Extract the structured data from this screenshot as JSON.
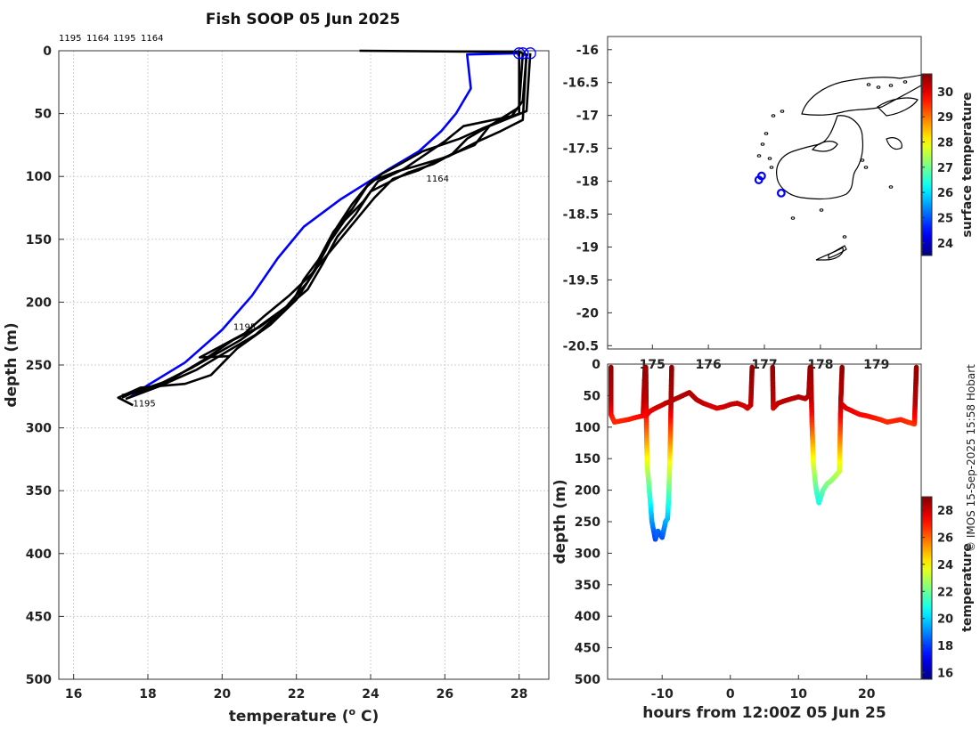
{
  "title": "Fish SOOP 05 Jun 2025",
  "credit": "© IMOS 15-Sep-2025 15:58 Hobart",
  "chart_data": [
    {
      "id": "profiles",
      "type": "line",
      "xlabel": "temperature (",
      "xlabel_sup": "o",
      "xlabel_end": " C)",
      "ylabel": "depth (m)",
      "xlim": [
        15.6,
        28.8
      ],
      "ylim": [
        0,
        500
      ],
      "y_reversed": true,
      "xticks": [
        16,
        18,
        20,
        22,
        24,
        26,
        28
      ],
      "yticks": [
        0,
        50,
        100,
        150,
        200,
        250,
        300,
        350,
        400,
        450,
        500
      ],
      "grid": true,
      "top_labels": [
        "1195",
        "1164",
        "1195",
        "1164"
      ],
      "annotations": [
        {
          "text": "1195",
          "x": 20.3,
          "y": 222
        },
        {
          "text": "1164",
          "x": 25.5,
          "y": 104
        },
        {
          "text": "1195",
          "x": 17.6,
          "y": 283
        }
      ],
      "series": [
        {
          "name": "climatology",
          "color": "#0000ff",
          "points": [
            [
              28.0,
              2
            ],
            [
              26.6,
              3
            ],
            [
              26.7,
              30
            ],
            [
              26.3,
              50
            ],
            [
              25.9,
              64
            ],
            [
              25.3,
              80
            ],
            [
              24.5,
              94
            ],
            [
              23.2,
              118
            ],
            [
              22.2,
              140
            ],
            [
              21.5,
              165
            ],
            [
              20.8,
              195
            ],
            [
              20.0,
              222
            ],
            [
              19.0,
              248
            ],
            [
              18.0,
              266
            ],
            [
              17.5,
              276
            ]
          ]
        },
        {
          "name": "profile-1",
          "color": "#000000",
          "points": [
            [
              23.7,
              0
            ],
            [
              28.0,
              1
            ],
            [
              28.2,
              3
            ],
            [
              28.1,
              40
            ],
            [
              27.8,
              52
            ],
            [
              26.5,
              60
            ],
            [
              26.0,
              72
            ],
            [
              25.5,
              82
            ],
            [
              24.9,
              94
            ],
            [
              24.2,
              104
            ],
            [
              23.8,
              120
            ],
            [
              23.3,
              135
            ],
            [
              22.9,
              152
            ],
            [
              22.5,
              175
            ],
            [
              22.0,
              198
            ],
            [
              21.3,
              218
            ],
            [
              20.4,
              237
            ],
            [
              19.7,
              258
            ],
            [
              19.0,
              265
            ],
            [
              17.8,
              268
            ],
            [
              17.2,
              276
            ],
            [
              17.6,
              282
            ]
          ]
        },
        {
          "name": "profile-2",
          "color": "#000000",
          "points": [
            [
              28.1,
              2
            ],
            [
              28.0,
              45
            ],
            [
              27.3,
              58
            ],
            [
              26.6,
              70
            ],
            [
              26.2,
              82
            ],
            [
              25.7,
              90
            ],
            [
              25.0,
              97
            ],
            [
              24.0,
              112
            ],
            [
              23.6,
              130
            ],
            [
              23.1,
              148
            ],
            [
              22.7,
              170
            ],
            [
              22.3,
              190
            ],
            [
              21.7,
              205
            ],
            [
              21.0,
              220
            ],
            [
              20.3,
              230
            ],
            [
              19.5,
              246
            ],
            [
              18.6,
              262
            ],
            [
              17.6,
              272
            ],
            [
              17.3,
              276
            ]
          ]
        },
        {
          "name": "profile-3",
          "color": "#000000",
          "points": [
            [
              28.3,
              2
            ],
            [
              28.2,
              48
            ],
            [
              27.2,
              60
            ],
            [
              26.8,
              75
            ],
            [
              25.9,
              86
            ],
            [
              25.3,
              95
            ],
            [
              24.6,
              102
            ],
            [
              24.1,
              117
            ],
            [
              23.4,
              142
            ],
            [
              22.9,
              160
            ],
            [
              22.4,
              178
            ],
            [
              21.8,
              195
            ],
            [
              21.1,
              212
            ],
            [
              20.6,
              225
            ],
            [
              19.4,
              244
            ],
            [
              20.2,
              243
            ]
          ]
        },
        {
          "name": "profile-4",
          "color": "#000000",
          "points": [
            [
              28.0,
              2
            ],
            [
              28.0,
              50
            ],
            [
              27.0,
              62
            ],
            [
              26.4,
              70
            ],
            [
              25.4,
              80
            ],
            [
              24.8,
              90
            ],
            [
              24.3,
              98
            ],
            [
              23.9,
              108
            ],
            [
              23.5,
              126
            ],
            [
              23.0,
              144
            ],
            [
              22.6,
              166
            ],
            [
              22.2,
              182
            ],
            [
              21.9,
              200
            ],
            [
              21.2,
              215
            ],
            [
              20.5,
              230
            ],
            [
              19.2,
              252
            ],
            [
              18.0,
              270
            ],
            [
              17.3,
              274
            ]
          ]
        },
        {
          "name": "profile-5",
          "color": "#000000",
          "points": [
            [
              28.2,
              3
            ],
            [
              28.1,
              55
            ],
            [
              27.5,
              64
            ],
            [
              26.9,
              72
            ],
            [
              26.1,
              84
            ],
            [
              25.2,
              92
            ],
            [
              24.7,
              96
            ],
            [
              24.0,
              104
            ],
            [
              23.5,
              122
            ],
            [
              23.1,
              140
            ],
            [
              22.8,
              158
            ],
            [
              22.3,
              184
            ],
            [
              21.6,
              208
            ],
            [
              20.9,
              226
            ],
            [
              20.2,
              238
            ],
            [
              19.3,
              254
            ],
            [
              18.3,
              267
            ],
            [
              17.4,
              277
            ]
          ]
        }
      ],
      "markers": [
        [
          28.0,
          2
        ],
        [
          28.1,
          2
        ],
        [
          28.3,
          2
        ]
      ]
    },
    {
      "id": "map",
      "type": "scatter",
      "xticks": [
        175,
        176,
        177,
        178,
        179
      ],
      "yticks": [
        -16,
        -16.5,
        -17,
        -17.5,
        -18,
        -18.5,
        -19,
        -19.5,
        -20,
        -20.5
      ],
      "xlim": [
        174.2,
        179.8
      ],
      "ylim": [
        -20.55,
        -15.8
      ],
      "positions": [
        [
          176.9,
          -17.98
        ],
        [
          176.95,
          -17.92
        ],
        [
          177.3,
          -18.18
        ]
      ],
      "colorbar": {
        "label": "surface temperature",
        "min": 23.5,
        "max": 30.7,
        "ticks": [
          24,
          25,
          26,
          27,
          28,
          29,
          30
        ]
      }
    },
    {
      "id": "transect",
      "type": "scatter",
      "xlabel": "hours from 12:00Z 05 Jun 25",
      "ylabel": "depth (m)",
      "xlim": [
        -18,
        28
      ],
      "ylim": [
        0,
        500
      ],
      "y_reversed": true,
      "xticks": [
        -10,
        0,
        10,
        20
      ],
      "yticks": [
        0,
        50,
        100,
        150,
        200,
        250,
        300,
        350,
        400,
        450,
        500
      ],
      "colorbar": {
        "label": "temperature",
        "min": 15.5,
        "max": 29,
        "ticks": [
          16,
          18,
          20,
          22,
          24,
          26,
          28
        ]
      },
      "tracks": [
        [
          [
            -17.5,
            5
          ],
          [
            -17.5,
            80
          ],
          [
            -17,
            92
          ],
          [
            -15,
            88
          ],
          [
            -14,
            85
          ],
          [
            -12.8,
            82
          ],
          [
            -12.6,
            30
          ],
          [
            -12.5,
            5
          ]
        ],
        [
          [
            -12.4,
            5
          ],
          [
            -12.3,
            100
          ],
          [
            -12.2,
            160
          ],
          [
            -11.8,
            210
          ],
          [
            -11.5,
            250
          ],
          [
            -11,
            278
          ],
          [
            -10.6,
            265
          ],
          [
            -10,
            275
          ],
          [
            -9.5,
            250
          ],
          [
            -9.2,
            245
          ],
          [
            -9.0,
            200
          ],
          [
            -8.8,
            120
          ],
          [
            -8.7,
            60
          ],
          [
            -8.6,
            5
          ]
        ],
        [
          [
            -12.4,
            82
          ],
          [
            -11.8,
            75
          ],
          [
            -11,
            70
          ],
          [
            -10,
            65
          ],
          [
            -9.5,
            62
          ],
          [
            -9,
            60
          ],
          [
            -8,
            55
          ],
          [
            -7,
            50
          ],
          [
            -6,
            45
          ],
          [
            -5,
            56
          ],
          [
            -4,
            62
          ],
          [
            -3,
            66
          ],
          [
            -2,
            70
          ],
          [
            -1,
            68
          ],
          [
            0,
            64
          ],
          [
            1,
            62
          ],
          [
            2,
            66
          ],
          [
            2.5,
            70
          ],
          [
            3,
            65
          ],
          [
            3.2,
            5
          ]
        ],
        [
          [
            6.2,
            5
          ],
          [
            6.3,
            70
          ],
          [
            7,
            62
          ],
          [
            8,
            58
          ],
          [
            9,
            55
          ],
          [
            10,
            52
          ],
          [
            11,
            55
          ],
          [
            11.5,
            50
          ],
          [
            11.7,
            5
          ]
        ],
        [
          [
            11.8,
            5
          ],
          [
            12,
            100
          ],
          [
            12.2,
            160
          ],
          [
            12.6,
            200
          ],
          [
            13,
            220
          ],
          [
            13.6,
            200
          ],
          [
            14.2,
            190
          ],
          [
            14.8,
            185
          ],
          [
            15.4,
            178
          ],
          [
            16,
            170
          ],
          [
            16.1,
            120
          ],
          [
            16.2,
            60
          ],
          [
            16.4,
            5
          ]
        ],
        [
          [
            16.2,
            62
          ],
          [
            17,
            70
          ],
          [
            18,
            75
          ],
          [
            19,
            80
          ],
          [
            20,
            82
          ],
          [
            21,
            85
          ],
          [
            22,
            88
          ],
          [
            23,
            92
          ],
          [
            24,
            90
          ],
          [
            25,
            88
          ],
          [
            26,
            92
          ],
          [
            27,
            95
          ],
          [
            27.3,
            5
          ]
        ]
      ]
    }
  ]
}
